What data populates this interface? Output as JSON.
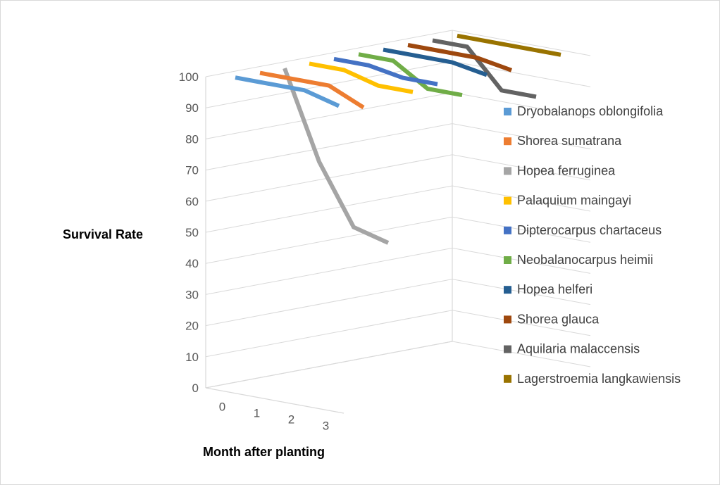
{
  "chart_data": {
    "type": "line",
    "title": "",
    "xlabel": "Month after planting",
    "ylabel": "Survival Rate",
    "ylim": [
      0,
      100
    ],
    "yticks": [
      0,
      10,
      20,
      30,
      40,
      50,
      60,
      70,
      80,
      90,
      100
    ],
    "categories": [
      "0",
      "1",
      "2",
      "3"
    ],
    "grid": true,
    "legend_position": "right",
    "series": [
      {
        "name": "Dryobalanops oblongifolia",
        "color": "#5b9bd5",
        "values": [
          100,
          100,
          100,
          97
        ]
      },
      {
        "name": "Shorea sumatrana",
        "color": "#ed7d31",
        "values": [
          100,
          100,
          100,
          95
        ]
      },
      {
        "name": "Hopea ferruginea",
        "color": "#a5a5a5",
        "values": [
          100,
          72,
          53,
          50
        ]
      },
      {
        "name": "Palaquium maingayi",
        "color": "#ffc000",
        "values": [
          100,
          100,
          97,
          97
        ]
      },
      {
        "name": "Dipterocarpus chartaceus",
        "color": "#4472c4",
        "values": [
          100,
          100,
          98,
          98
        ]
      },
      {
        "name": "Neobalanocarpus heimii",
        "color": "#70ad47",
        "values": [
          100,
          100,
          93,
          93
        ]
      },
      {
        "name": "Hopea helferi",
        "color": "#255e91",
        "values": [
          100,
          100,
          100,
          98
        ]
      },
      {
        "name": "Shorea glauca",
        "color": "#9e480e",
        "values": [
          100,
          100,
          100,
          98
        ]
      },
      {
        "name": "Aquilaria malaccensis",
        "color": "#636363",
        "values": [
          100,
          100,
          88,
          88
        ]
      },
      {
        "name": "Lagerstroemia langkawiensis",
        "color": "#997300",
        "values": [
          100,
          100,
          100,
          100
        ]
      }
    ]
  }
}
